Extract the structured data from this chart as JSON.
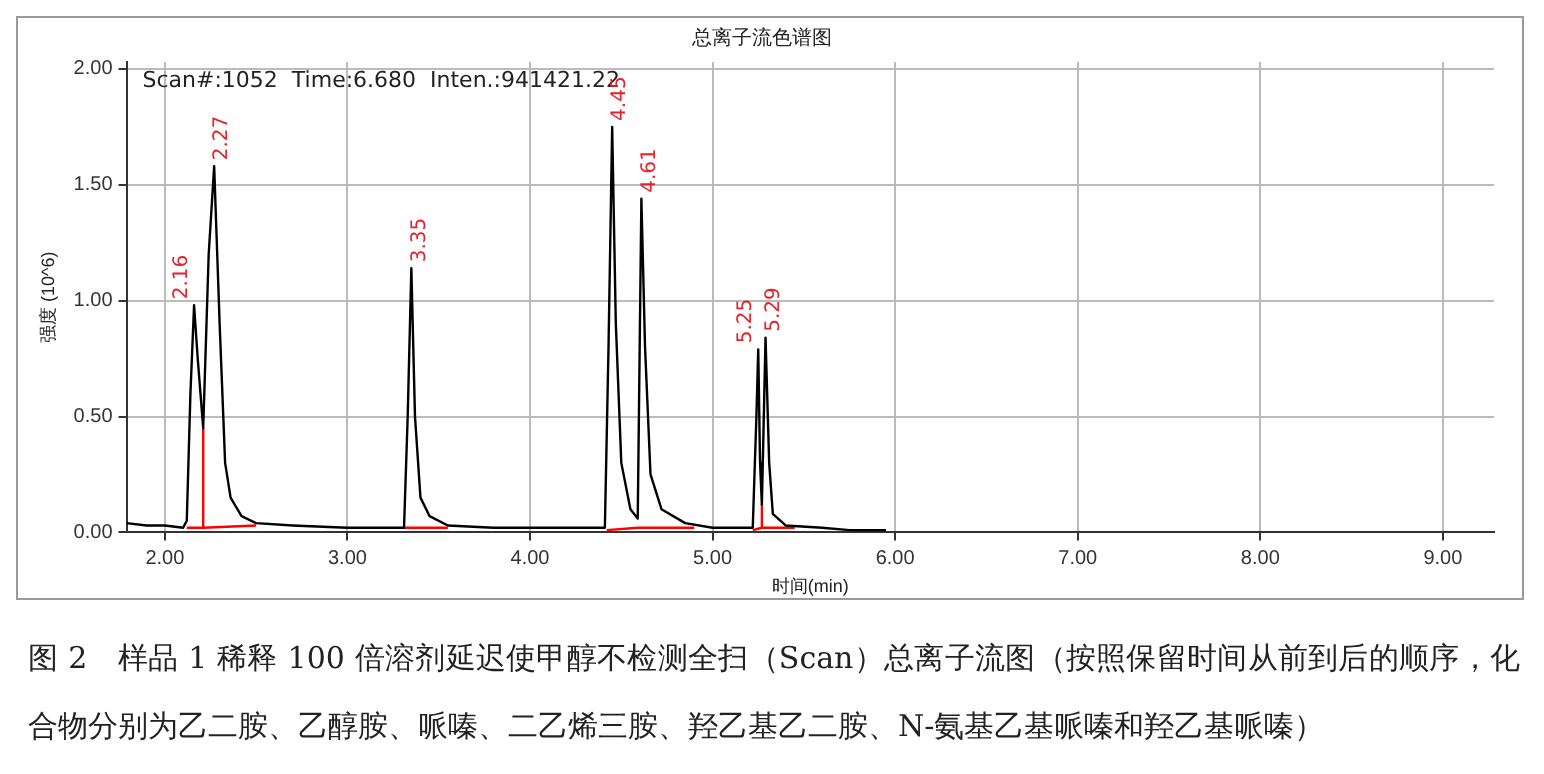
{
  "chart_data": {
    "type": "line",
    "title": "总离子流色谱图",
    "xlabel": "时间(min)",
    "ylabel": "强度 (10^6)",
    "xlim": [
      1.79,
      9.28
    ],
    "ylim": [
      0,
      2.03
    ],
    "xticks": [
      {
        "value": 2,
        "label": "2.00"
      },
      {
        "value": 3,
        "label": "3.00"
      },
      {
        "value": 4,
        "label": "4.00"
      },
      {
        "value": 5,
        "label": "5.00"
      },
      {
        "value": 6,
        "label": "6.00"
      },
      {
        "value": 7,
        "label": "7.00"
      },
      {
        "value": 8,
        "label": "8.00"
      },
      {
        "value": 9,
        "label": "9.00"
      }
    ],
    "yticks": [
      {
        "value": 0,
        "label": "0.00"
      },
      {
        "value": 0.5,
        "label": "0.50"
      },
      {
        "value": 1,
        "label": "1.00"
      },
      {
        "value": 1.5,
        "label": "1.50"
      },
      {
        "value": 2,
        "label": "2.00"
      }
    ],
    "grid": true,
    "legend": false,
    "marker": "none",
    "line_style": "solid",
    "series": [
      {
        "color": "#000000",
        "x": [
          1.79,
          1.9,
          2.0,
          2.1,
          2.12,
          2.14,
          2.16,
          2.18,
          2.21,
          2.24,
          2.27,
          2.3,
          2.33,
          2.36,
          2.42,
          2.5,
          2.7,
          3.0,
          3.31,
          3.33,
          3.35,
          3.37,
          3.4,
          3.45,
          3.55,
          3.8,
          4.2,
          4.41,
          4.43,
          4.45,
          4.47,
          4.5,
          4.55,
          4.59,
          4.61,
          4.63,
          4.66,
          4.72,
          4.85,
          5.0,
          5.22,
          5.24,
          5.25,
          5.26,
          5.27,
          5.29,
          5.31,
          5.33,
          5.4,
          5.6,
          5.75,
          5.85,
          5.95
        ],
        "values": [
          0.04,
          0.03,
          0.03,
          0.02,
          0.05,
          0.6,
          0.98,
          0.75,
          0.45,
          1.2,
          1.58,
          0.9,
          0.3,
          0.15,
          0.07,
          0.04,
          0.03,
          0.02,
          0.02,
          0.5,
          1.14,
          0.5,
          0.15,
          0.07,
          0.03,
          0.02,
          0.02,
          0.02,
          0.8,
          1.75,
          0.9,
          0.3,
          0.1,
          0.06,
          1.44,
          0.8,
          0.25,
          0.1,
          0.04,
          0.02,
          0.02,
          0.5,
          0.79,
          0.3,
          0.12,
          0.84,
          0.3,
          0.08,
          0.03,
          0.02,
          0.01,
          0.01,
          0.01
        ]
      },
      {
        "color": "#ff0000",
        "x": [
          2.12,
          2.21,
          2.21,
          2.21,
          2.5
        ],
        "values": [
          0.02,
          0.02,
          0.45,
          0.02,
          0.03
        ]
      },
      {
        "color": "#ff0000",
        "x": [
          3.31,
          3.55
        ],
        "values": [
          0.02,
          0.02
        ]
      },
      {
        "color": "#ff0000",
        "x": [
          4.42,
          4.59,
          4.9
        ],
        "values": [
          0.01,
          0.02,
          0.02
        ]
      },
      {
        "color": "#ff0000",
        "x": [
          5.22,
          5.27,
          5.27,
          5.27,
          5.45
        ],
        "values": [
          0.01,
          0.02,
          0.12,
          0.02,
          0.02
        ]
      }
    ],
    "annotations": [
      "Scan#:1052  Time:6.680  Inten.:941421.22",
      {
        "text": "2.16",
        "x": 2.16,
        "y": 0.98
      },
      {
        "text": "2.27",
        "x": 2.27,
        "y": 1.58
      },
      {
        "text": "3.35",
        "x": 3.35,
        "y": 1.14
      },
      {
        "text": "4.45",
        "x": 4.45,
        "y": 1.75
      },
      {
        "text": "4.61",
        "x": 4.61,
        "y": 1.44
      },
      {
        "text": "5.25",
        "x": 5.25,
        "y": 0.79
      },
      {
        "text": "5.29",
        "x": 5.29,
        "y": 0.84
      },
      "图 2　样品 1 稀释 100 倍溶剂延迟使甲醇不检测全扫（Scan）总离子流图（按照保留时间从前到后的顺序，化合物分别为乙二胺、乙醇胺、哌嗪、二乙烯三胺、羟乙基乙二胺、N-氨基乙基哌嗪和羟乙基哌嗪）"
    ]
  }
}
